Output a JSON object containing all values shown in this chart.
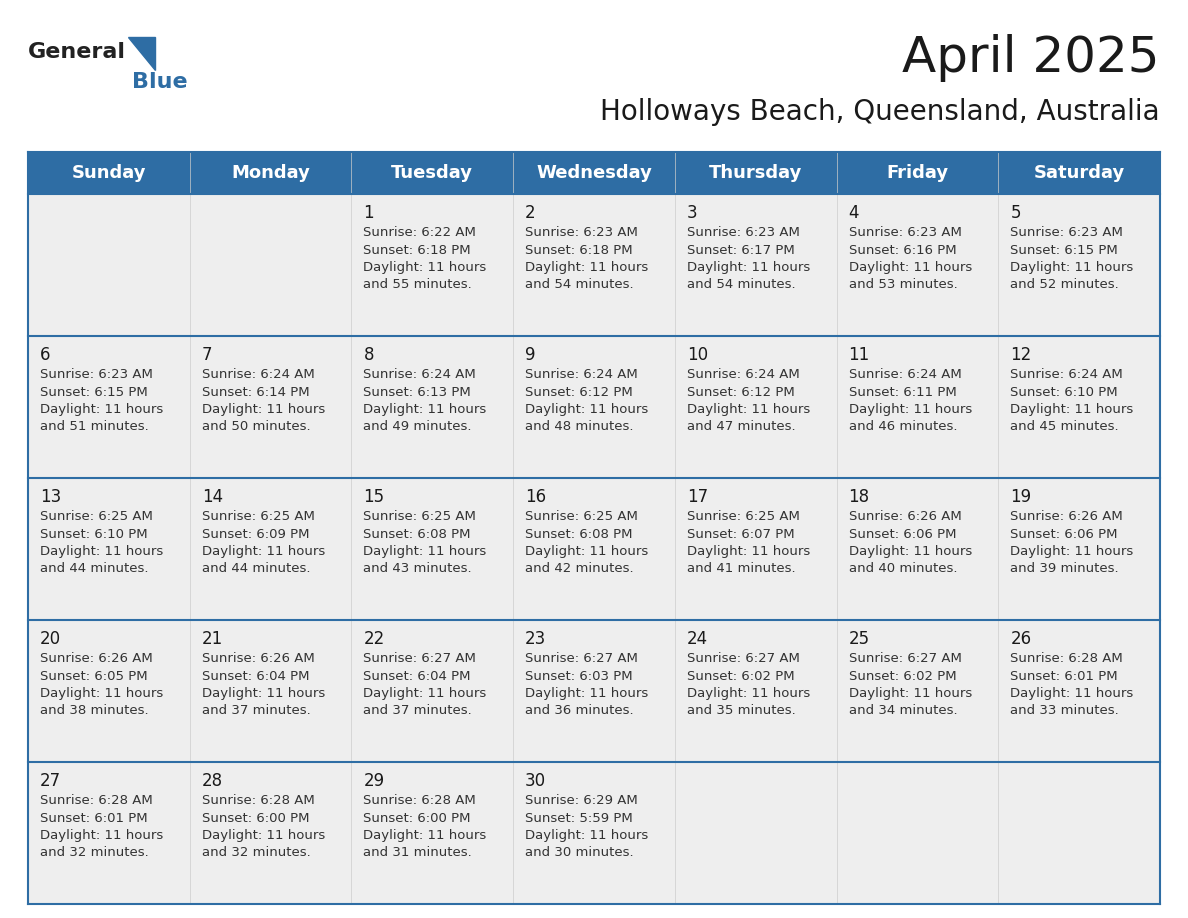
{
  "title": "April 2025",
  "subtitle": "Holloways Beach, Queensland, Australia",
  "header_bg_color": "#2E6DA4",
  "header_text_color": "#FFFFFF",
  "row_bg_color": "#EEEEEE",
  "cell_text_color": "#333333",
  "day_num_color": "#1a1a1a",
  "border_color": "#2E6DA4",
  "days_of_week": [
    "Sunday",
    "Monday",
    "Tuesday",
    "Wednesday",
    "Thursday",
    "Friday",
    "Saturday"
  ],
  "calendar_data": [
    [
      "",
      "",
      "1\nSunrise: 6:22 AM\nSunset: 6:18 PM\nDaylight: 11 hours\nand 55 minutes.",
      "2\nSunrise: 6:23 AM\nSunset: 6:18 PM\nDaylight: 11 hours\nand 54 minutes.",
      "3\nSunrise: 6:23 AM\nSunset: 6:17 PM\nDaylight: 11 hours\nand 54 minutes.",
      "4\nSunrise: 6:23 AM\nSunset: 6:16 PM\nDaylight: 11 hours\nand 53 minutes.",
      "5\nSunrise: 6:23 AM\nSunset: 6:15 PM\nDaylight: 11 hours\nand 52 minutes."
    ],
    [
      "6\nSunrise: 6:23 AM\nSunset: 6:15 PM\nDaylight: 11 hours\nand 51 minutes.",
      "7\nSunrise: 6:24 AM\nSunset: 6:14 PM\nDaylight: 11 hours\nand 50 minutes.",
      "8\nSunrise: 6:24 AM\nSunset: 6:13 PM\nDaylight: 11 hours\nand 49 minutes.",
      "9\nSunrise: 6:24 AM\nSunset: 6:12 PM\nDaylight: 11 hours\nand 48 minutes.",
      "10\nSunrise: 6:24 AM\nSunset: 6:12 PM\nDaylight: 11 hours\nand 47 minutes.",
      "11\nSunrise: 6:24 AM\nSunset: 6:11 PM\nDaylight: 11 hours\nand 46 minutes.",
      "12\nSunrise: 6:24 AM\nSunset: 6:10 PM\nDaylight: 11 hours\nand 45 minutes."
    ],
    [
      "13\nSunrise: 6:25 AM\nSunset: 6:10 PM\nDaylight: 11 hours\nand 44 minutes.",
      "14\nSunrise: 6:25 AM\nSunset: 6:09 PM\nDaylight: 11 hours\nand 44 minutes.",
      "15\nSunrise: 6:25 AM\nSunset: 6:08 PM\nDaylight: 11 hours\nand 43 minutes.",
      "16\nSunrise: 6:25 AM\nSunset: 6:08 PM\nDaylight: 11 hours\nand 42 minutes.",
      "17\nSunrise: 6:25 AM\nSunset: 6:07 PM\nDaylight: 11 hours\nand 41 minutes.",
      "18\nSunrise: 6:26 AM\nSunset: 6:06 PM\nDaylight: 11 hours\nand 40 minutes.",
      "19\nSunrise: 6:26 AM\nSunset: 6:06 PM\nDaylight: 11 hours\nand 39 minutes."
    ],
    [
      "20\nSunrise: 6:26 AM\nSunset: 6:05 PM\nDaylight: 11 hours\nand 38 minutes.",
      "21\nSunrise: 6:26 AM\nSunset: 6:04 PM\nDaylight: 11 hours\nand 37 minutes.",
      "22\nSunrise: 6:27 AM\nSunset: 6:04 PM\nDaylight: 11 hours\nand 37 minutes.",
      "23\nSunrise: 6:27 AM\nSunset: 6:03 PM\nDaylight: 11 hours\nand 36 minutes.",
      "24\nSunrise: 6:27 AM\nSunset: 6:02 PM\nDaylight: 11 hours\nand 35 minutes.",
      "25\nSunrise: 6:27 AM\nSunset: 6:02 PM\nDaylight: 11 hours\nand 34 minutes.",
      "26\nSunrise: 6:28 AM\nSunset: 6:01 PM\nDaylight: 11 hours\nand 33 minutes."
    ],
    [
      "27\nSunrise: 6:28 AM\nSunset: 6:01 PM\nDaylight: 11 hours\nand 32 minutes.",
      "28\nSunrise: 6:28 AM\nSunset: 6:00 PM\nDaylight: 11 hours\nand 32 minutes.",
      "29\nSunrise: 6:28 AM\nSunset: 6:00 PM\nDaylight: 11 hours\nand 31 minutes.",
      "30\nSunrise: 6:29 AM\nSunset: 5:59 PM\nDaylight: 11 hours\nand 30 minutes.",
      "",
      "",
      ""
    ]
  ],
  "num_rows": 5,
  "num_cols": 7,
  "logo_text_general": "General",
  "logo_text_blue": "Blue",
  "logo_triangle_color": "#2E6DA4",
  "title_fontsize": 36,
  "subtitle_fontsize": 20,
  "header_fontsize": 13,
  "cell_day_fontsize": 12,
  "cell_info_fontsize": 9.5
}
